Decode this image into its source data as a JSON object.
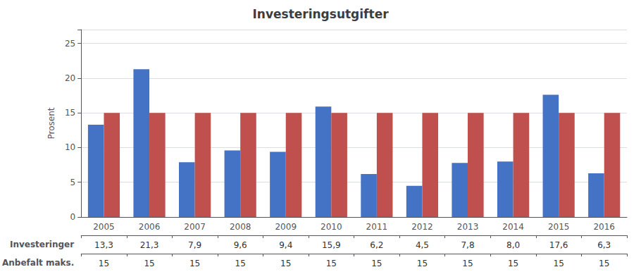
{
  "chart_data": {
    "type": "bar",
    "title": "Investeringsutgifter",
    "y_label": "Prosent",
    "categories": [
      "2005",
      "2006",
      "2007",
      "2008",
      "2009",
      "2010",
      "2011",
      "2012",
      "2013",
      "2014",
      "2015",
      "2016"
    ],
    "series": [
      {
        "name": "Investeringer",
        "color": "#4472C4",
        "values": [
          13.3,
          21.3,
          7.9,
          9.6,
          9.4,
          15.9,
          6.2,
          4.5,
          7.8,
          8.0,
          17.6,
          6.3
        ],
        "value_labels": [
          "13,3",
          "21,3",
          "7,9",
          "9,6",
          "9,4",
          "15,9",
          "6,2",
          "4,5",
          "7,8",
          "8,0",
          "17,6",
          "6,3"
        ]
      },
      {
        "name": "Anbefalt maks.",
        "color": "#C0504D",
        "values": [
          15,
          15,
          15,
          15,
          15,
          15,
          15,
          15,
          15,
          15,
          15,
          15
        ],
        "value_labels": [
          "15",
          "15",
          "15",
          "15",
          "15",
          "15",
          "15",
          "15",
          "15",
          "15",
          "15",
          "15"
        ]
      }
    ],
    "ylim": [
      0,
      27
    ],
    "yticks": [
      0,
      5,
      10,
      15,
      20,
      25
    ],
    "grid": true
  }
}
